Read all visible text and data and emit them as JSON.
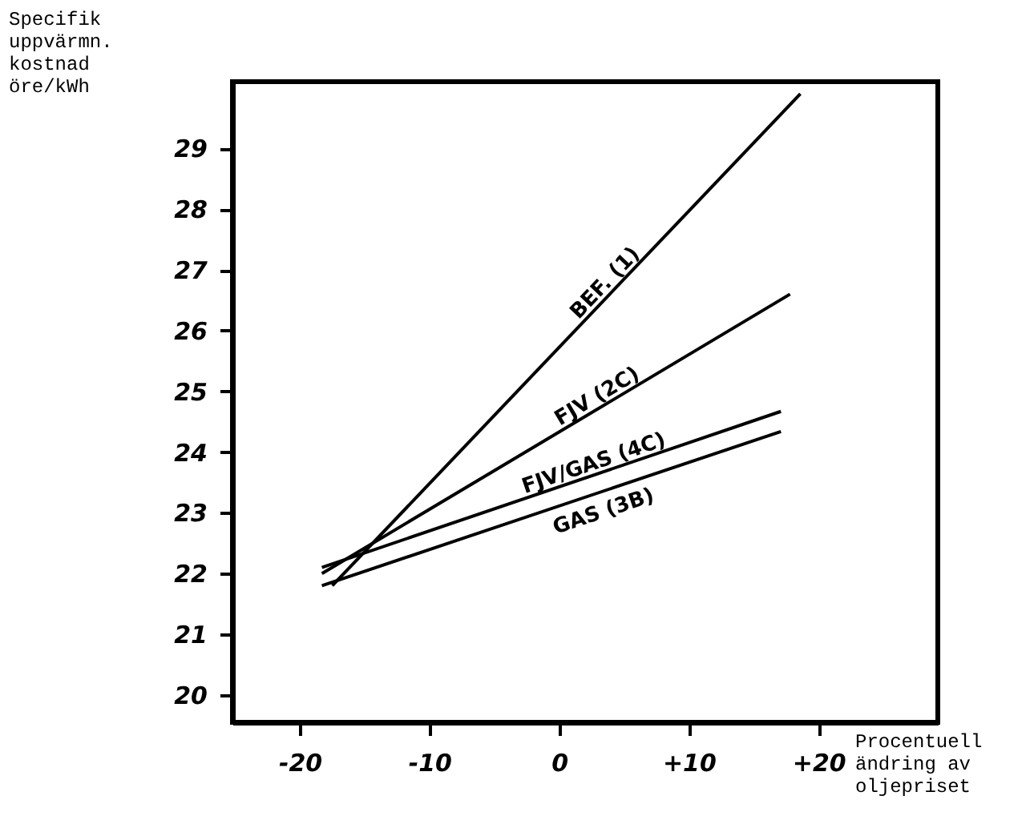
{
  "chart_data": {
    "type": "line",
    "ylabel": "Specifik\nuppvärmn.\nkostnad\nöre/kWh",
    "xlabel": "Procentuell\nändring av\noljepriset",
    "xlim": [
      -25.2,
      29.2
    ],
    "ylim": [
      19.55,
      30.1
    ],
    "xticks": [
      -20,
      -10,
      0,
      {
        "value": 10,
        "label": "+10"
      },
      {
        "value": 20,
        "label": "+20"
      }
    ],
    "yticks": [
      20,
      21,
      22,
      23,
      24,
      25,
      26,
      27,
      28,
      29
    ],
    "grid": false,
    "legend": false,
    "marker": "none",
    "line_style": "solid",
    "series": [
      {
        "name": "BEF. (1)",
        "color": "#000000",
        "x": [
          -17.5,
          18.6
        ],
        "values": [
          21.8,
          29.9
        ]
      },
      {
        "name": "FJV (2C)",
        "color": "#000000",
        "x": [
          -18.3,
          17.8
        ],
        "values": [
          22.0,
          26.6
        ]
      },
      {
        "name": "FJV/GAS (4C)",
        "color": "#000000",
        "x": [
          -18.3,
          17.1
        ],
        "values": [
          22.1,
          24.67
        ]
      },
      {
        "name": "GAS (3B)",
        "color": "#000000",
        "x": [
          -18.3,
          17.1
        ],
        "values": [
          21.8,
          24.34
        ]
      }
    ]
  }
}
